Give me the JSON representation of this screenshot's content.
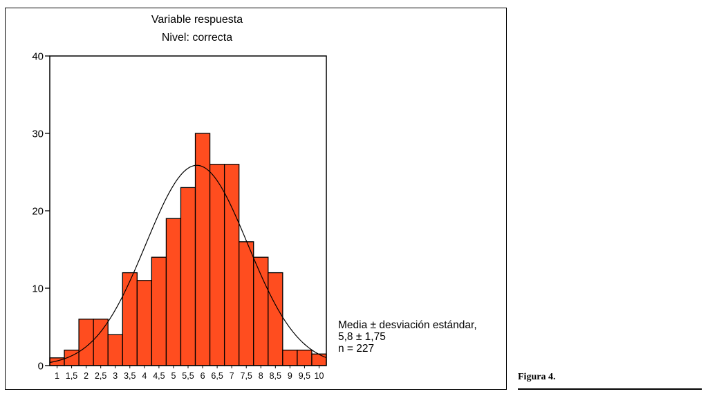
{
  "chart_data": {
    "type": "bar",
    "title": "Variable respuesta",
    "subtitle": "Nivel: correcta",
    "categories": [
      "1",
      "1,5",
      "2",
      "2,5",
      "3",
      "3,5",
      "4",
      "4,5",
      "5",
      "5,5",
      "6",
      "6,5",
      "7",
      "7,5",
      "8",
      "8,5",
      "9",
      "9,5",
      "10"
    ],
    "values": [
      1,
      2,
      6,
      6,
      4,
      12,
      11,
      14,
      19,
      23,
      30,
      26,
      26,
      16,
      14,
      12,
      2,
      2,
      1.5
    ],
    "ylim": [
      0,
      40
    ],
    "yticks": [
      "0",
      "10",
      "20",
      "30",
      "40"
    ],
    "bar_color": "#FF4D1F",
    "grid": false,
    "overlay": {
      "type": "normal curve",
      "mean": 5.8,
      "sd": 1.75,
      "n": 227
    }
  },
  "stats": {
    "line1": "Media ± desviación estándar,",
    "line2": "5,8 ± 1,75",
    "line3": "n = 227"
  },
  "caption": "Figura 4."
}
